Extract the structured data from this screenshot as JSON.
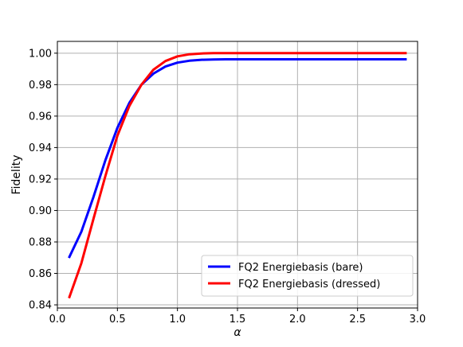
{
  "chart_data": {
    "type": "line",
    "title": "",
    "xlabel": "α",
    "ylabel": "Fidelity",
    "xlim": [
      0.0,
      3.0
    ],
    "ylim": [
      0.838,
      1.0075
    ],
    "xticks": [
      0.0,
      0.5,
      1.0,
      1.5,
      2.0,
      2.5,
      3.0
    ],
    "xtick_labels": [
      "0.0",
      "0.5",
      "1.0",
      "1.5",
      "2.0",
      "2.5",
      "3.0"
    ],
    "yticks": [
      0.84,
      0.86,
      0.88,
      0.9,
      0.92,
      0.94,
      0.96,
      0.98,
      1.0
    ],
    "ytick_labels": [
      "0.84",
      "0.86",
      "0.88",
      "0.90",
      "0.92",
      "0.94",
      "0.96",
      "0.98",
      "1.00"
    ],
    "grid": true,
    "legend_position": "lower-right",
    "x": [
      0.1,
      0.2,
      0.3,
      0.4,
      0.5,
      0.6,
      0.7,
      0.8,
      0.9,
      1.0,
      1.1,
      1.2,
      1.3,
      1.4,
      1.5,
      1.6,
      1.7,
      1.8,
      1.9,
      2.0,
      2.1,
      2.2,
      2.3,
      2.4,
      2.5,
      2.6,
      2.7,
      2.8,
      2.9
    ],
    "series": [
      {
        "name": "FQ2 Energiebasis (bare)",
        "color": "#0000ff",
        "values": [
          0.8705,
          0.8865,
          0.9085,
          0.932,
          0.9525,
          0.9685,
          0.98,
          0.987,
          0.9915,
          0.994,
          0.9952,
          0.9958,
          0.996,
          0.9961,
          0.9961,
          0.9961,
          0.9961,
          0.9961,
          0.9961,
          0.9961,
          0.9961,
          0.9961,
          0.9961,
          0.9961,
          0.9961,
          0.9961,
          0.9961,
          0.9961,
          0.9961
        ]
      },
      {
        "name": "FQ2 Energiebasis (dressed)",
        "color": "#ff0000",
        "values": [
          0.845,
          0.8665,
          0.8945,
          0.922,
          0.9475,
          0.9665,
          0.98,
          0.9895,
          0.995,
          0.998,
          0.9993,
          0.9998,
          1.0,
          1.0,
          1.0,
          1.0,
          1.0,
          1.0,
          1.0,
          1.0,
          1.0,
          1.0,
          1.0,
          1.0,
          1.0,
          1.0,
          1.0,
          1.0,
          1.0
        ]
      }
    ]
  }
}
